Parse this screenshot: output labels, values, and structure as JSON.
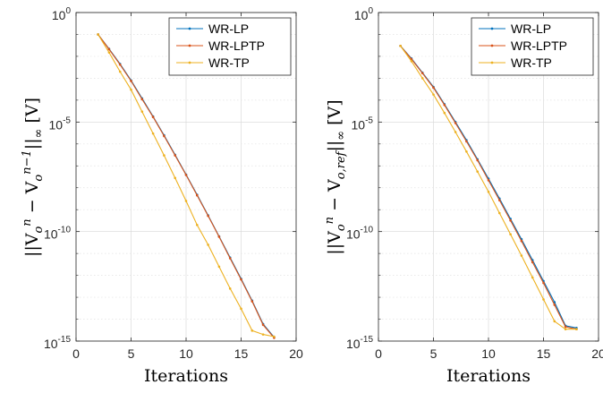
{
  "chart_data": [
    {
      "type": "line",
      "xlabel": "Iterations",
      "ylabel": "||V_o^n − V_o^{n−1}||_∞ [V]",
      "xlim": [
        0,
        20
      ],
      "ylim": [
        1e-15,
        1
      ],
      "yscale": "log",
      "xticks": [
        "0",
        "5",
        "10",
        "15",
        "20"
      ],
      "yticks": [
        {
          "base": "10",
          "exp": "-15"
        },
        {
          "base": "10",
          "exp": "-10"
        },
        {
          "base": "10",
          "exp": "-5"
        },
        {
          "base": "10",
          "exp": "0"
        }
      ],
      "grid": true,
      "legend_position": "top-right",
      "x": [
        2,
        3,
        4,
        5,
        6,
        7,
        8,
        9,
        10,
        11,
        12,
        13,
        14,
        15,
        16,
        17,
        18
      ],
      "series": [
        {
          "name": "WR-LP",
          "color": "#0072BD",
          "values": [
            0.1,
            0.022,
            0.0045,
            0.0008,
            0.00012,
            1.8e-05,
            2.5e-06,
            3.2e-07,
            4e-08,
            4.8e-09,
            5.5e-10,
            6e-11,
            6.5e-12,
            7e-13,
            7e-14,
            6e-15,
            1.5e-15
          ]
        },
        {
          "name": "WR-LPTP",
          "color": "#D95319",
          "values": [
            0.1,
            0.021,
            0.0042,
            0.00075,
            0.00011,
            1.7e-05,
            2.3e-06,
            3e-07,
            3.8e-08,
            4.5e-09,
            5.2e-10,
            5.8e-11,
            6e-12,
            6.5e-13,
            6.5e-14,
            5.5e-15,
            1.4e-15
          ]
        },
        {
          "name": "WR-TP",
          "color": "#EDB120",
          "values": [
            0.1,
            0.015,
            0.002,
            0.0003,
            3e-05,
            3e-06,
            3e-07,
            2.8e-08,
            2.5e-09,
            2e-10,
            2.5e-11,
            2.5e-12,
            2.5e-13,
            3e-14,
            3e-15,
            2e-15,
            1.6e-15
          ]
        }
      ]
    },
    {
      "type": "line",
      "xlabel": "Iterations",
      "ylabel": "||V_o^n − V_{o,ref}||_∞ [V]",
      "xlim": [
        0,
        20
      ],
      "ylim": [
        1e-15,
        1
      ],
      "yscale": "log",
      "xticks": [
        "0",
        "5",
        "10",
        "15",
        "20"
      ],
      "yticks": [
        {
          "base": "10",
          "exp": "-15"
        },
        {
          "base": "10",
          "exp": "-10"
        },
        {
          "base": "10",
          "exp": "-5"
        },
        {
          "base": "10",
          "exp": "0"
        }
      ],
      "grid": true,
      "legend_position": "top-right",
      "x": [
        2,
        3,
        4,
        5,
        6,
        7,
        8,
        9,
        10,
        11,
        12,
        13,
        14,
        15,
        16,
        17,
        18
      ],
      "series": [
        {
          "name": "WR-LP",
          "color": "#0072BD",
          "values": [
            0.03,
            0.008,
            0.0018,
            0.0004,
            6.5e-05,
            1e-05,
            1.5e-06,
            2e-07,
            2.6e-08,
            3.2e-09,
            3.8e-10,
            4.5e-11,
            5e-12,
            5.5e-13,
            6e-14,
            5e-15,
            4e-15
          ]
        },
        {
          "name": "WR-LPTP",
          "color": "#D95319",
          "values": [
            0.03,
            0.0075,
            0.0017,
            0.00037,
            6e-05,
            9e-06,
            1.3e-06,
            1.8e-07,
            2.2e-08,
            2.7e-09,
            3.2e-10,
            3.7e-11,
            4e-12,
            4.5e-13,
            4.5e-14,
            4.5e-15,
            3.5e-15
          ]
        },
        {
          "name": "WR-TP",
          "color": "#EDB120",
          "values": [
            0.03,
            0.006,
            0.001,
            0.00018,
            2.6e-05,
            3.5e-06,
            4.5e-07,
            5.5e-08,
            6.5e-09,
            7e-10,
            7.5e-11,
            8e-12,
            8e-13,
            8e-14,
            8e-15,
            3.5e-15,
            3.5e-15
          ]
        }
      ]
    }
  ]
}
